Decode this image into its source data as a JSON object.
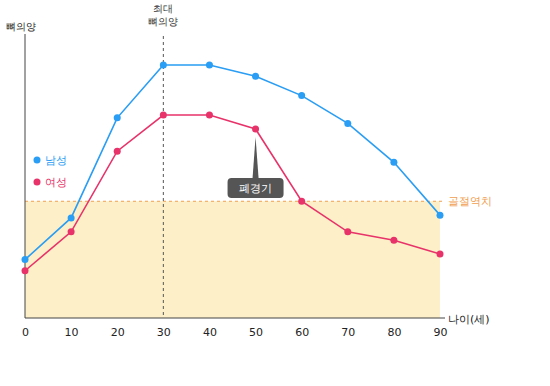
{
  "chart_data": {
    "type": "line",
    "x_label": "나이(세)",
    "y_label": "뼈의양",
    "x": [
      0,
      10,
      20,
      30,
      40,
      50,
      60,
      70,
      80,
      90
    ],
    "series": [
      {
        "name": "남성",
        "color": "#2a9df4",
        "marker": "circle",
        "values": [
          21,
          36,
          72,
          91,
          91,
          87,
          80,
          70,
          56,
          37
        ]
      },
      {
        "name": "여성",
        "color": "#e8336a",
        "marker": "circle",
        "values": [
          17,
          31,
          60,
          73,
          73,
          68,
          42,
          31,
          28,
          23
        ]
      }
    ],
    "xlim": [
      0,
      90
    ],
    "xticks": [
      0,
      10,
      20,
      30,
      40,
      50,
      60,
      70,
      80,
      90
    ],
    "ylim": [
      0,
      100
    ],
    "tick_labels": "x",
    "legend": "left",
    "threshold": {
      "label": "골절역치",
      "value": 42,
      "color": "#f0a050"
    },
    "annotations": [
      {
        "text": "최대 뼈의양",
        "x": 30
      },
      {
        "text": "폐경기",
        "x": 50,
        "series": 1
      }
    ]
  }
}
